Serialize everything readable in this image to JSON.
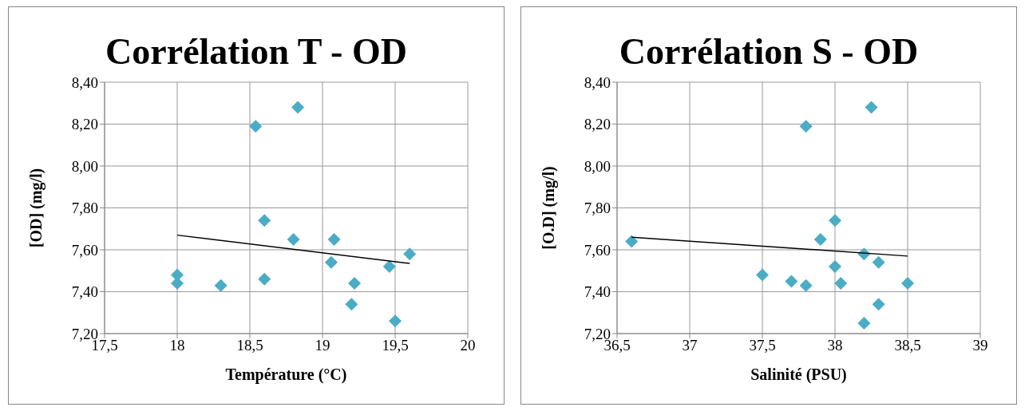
{
  "chart_data": [
    {
      "type": "scatter",
      "title": "Corrélation T - OD",
      "xlabel": "Température (°C)",
      "ylabel": "[OD] (mg/l)",
      "grid": true,
      "xlim": [
        17.5,
        20
      ],
      "xticks": [
        {
          "value": 17.5,
          "label": "17,5"
        },
        18,
        {
          "value": 18.5,
          "label": "18,5"
        },
        19,
        {
          "value": 19.5,
          "label": "19,5"
        },
        20
      ],
      "ylim": [
        7.2,
        8.4
      ],
      "yticks": [
        {
          "value": 7.2,
          "label": "7,20"
        },
        {
          "value": 7.4,
          "label": "7,40"
        },
        {
          "value": 7.6,
          "label": "7,60"
        },
        {
          "value": 7.8,
          "label": "7,80"
        },
        {
          "value": 8.0,
          "label": "8,00"
        },
        {
          "value": 8.2,
          "label": "8,20"
        },
        {
          "value": 8.4,
          "label": "8,40"
        }
      ],
      "series": [
        {
          "marker": "diamond",
          "color": "#4bacc6",
          "x": [
            18.0,
            18.0,
            18.3,
            18.54,
            18.6,
            18.6,
            18.8,
            18.83,
            19.08,
            19.06,
            19.22,
            19.2,
            19.46,
            19.6,
            19.5
          ],
          "values": [
            7.48,
            7.44,
            7.43,
            8.19,
            7.46,
            7.74,
            7.65,
            8.28,
            7.65,
            7.54,
            7.44,
            7.34,
            7.52,
            7.58,
            7.26
          ]
        },
        {
          "type": "line",
          "marker": "none",
          "color": "#000000",
          "x": [
            18.0,
            19.6
          ],
          "values": [
            7.67,
            7.535
          ]
        }
      ]
    },
    {
      "type": "scatter",
      "title": "Corrélation S - OD",
      "xlabel": "Salinité (PSU)",
      "ylabel": "[O.D] (mg/l)",
      "grid": true,
      "xlim": [
        36.5,
        39
      ],
      "xticks": [
        {
          "value": 36.5,
          "label": "36,5"
        },
        37,
        {
          "value": 37.5,
          "label": "37,5"
        },
        38,
        {
          "value": 38.5,
          "label": "38,5"
        },
        39
      ],
      "ylim": [
        7.2,
        8.4
      ],
      "yticks": [
        {
          "value": 7.2,
          "label": "7,20"
        },
        {
          "value": 7.4,
          "label": "7,40"
        },
        {
          "value": 7.6,
          "label": "7,60"
        },
        {
          "value": 7.8,
          "label": "7,80"
        },
        {
          "value": 8.0,
          "label": "8,00"
        },
        {
          "value": 8.2,
          "label": "8,20"
        },
        {
          "value": 8.4,
          "label": "8,40"
        }
      ],
      "series": [
        {
          "marker": "diamond",
          "color": "#4bacc6",
          "x": [
            36.6,
            37.5,
            37.7,
            37.8,
            37.8,
            37.9,
            38.0,
            38.0,
            38.04,
            38.2,
            38.2,
            38.25,
            38.3,
            38.3,
            38.5
          ],
          "values": [
            7.64,
            7.48,
            7.45,
            7.43,
            8.19,
            7.65,
            7.74,
            7.52,
            7.44,
            7.58,
            7.25,
            8.28,
            7.54,
            7.34,
            7.44
          ]
        },
        {
          "type": "line",
          "marker": "none",
          "color": "#000000",
          "x": [
            36.6,
            38.5
          ],
          "values": [
            7.66,
            7.57
          ]
        }
      ]
    }
  ]
}
